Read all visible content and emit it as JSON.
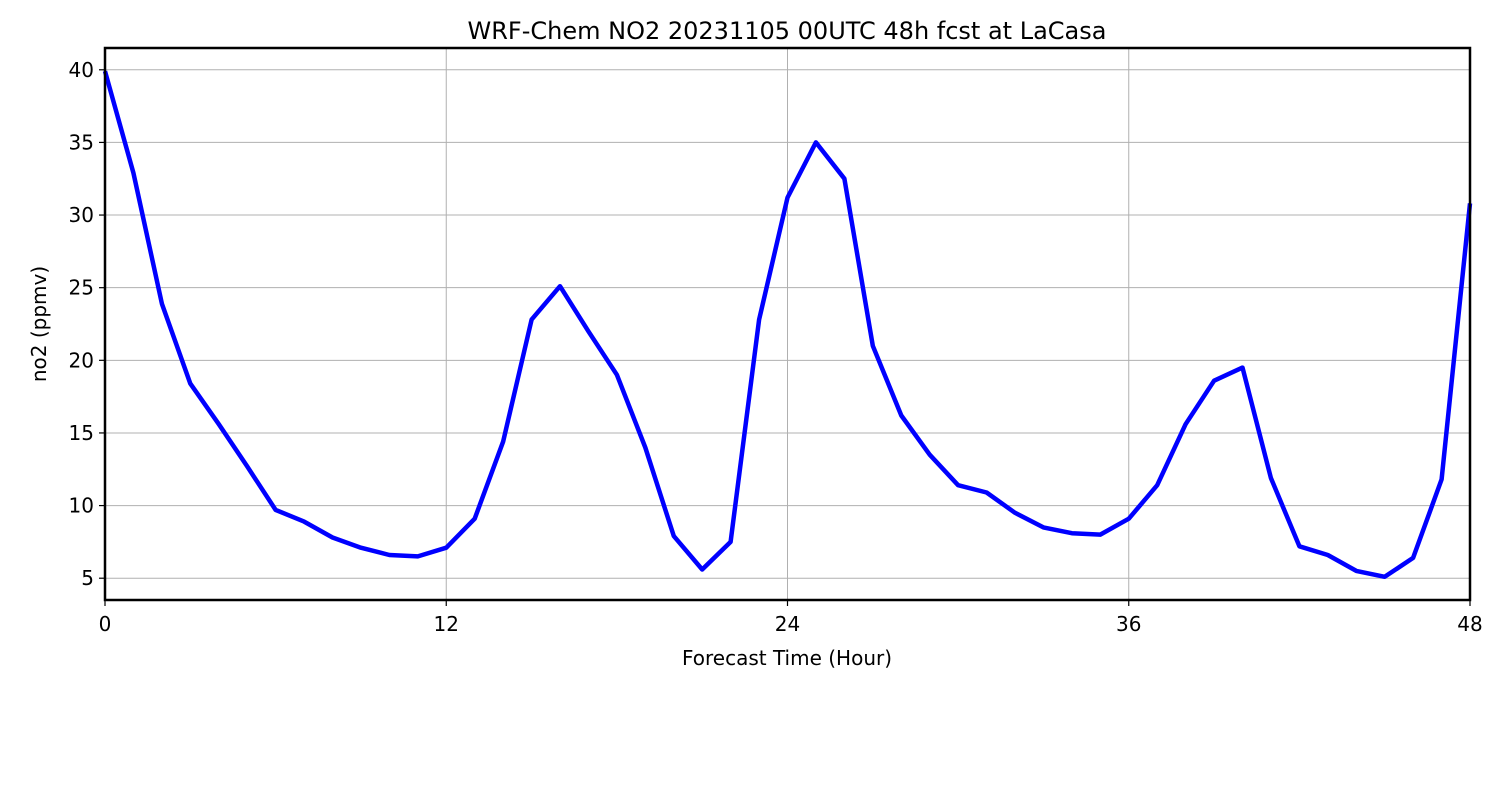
{
  "chart_data": {
    "type": "line",
    "title": "WRF-Chem NO2  20231105 00UTC 48h fcst at LaCasa",
    "xlabel": "Forecast Time (Hour)",
    "ylabel": "no2  (ppmv)",
    "xlim": [
      0,
      48
    ],
    "ylim": [
      3.5,
      41.5
    ],
    "xticks": [
      0,
      12,
      24,
      36,
      48
    ],
    "yticks": [
      5,
      10,
      15,
      20,
      25,
      30,
      35,
      40
    ],
    "grid": true,
    "line_color": "#0000ff",
    "series": [
      {
        "x": [
          0,
          1,
          2,
          3,
          4,
          5,
          6,
          7,
          8,
          9,
          10,
          11,
          12,
          13,
          14,
          15,
          16,
          17,
          18,
          19,
          20,
          21,
          22,
          23,
          24,
          25,
          26,
          27,
          28,
          29,
          30,
          31,
          32,
          33,
          34,
          35,
          36,
          37,
          38,
          39,
          40,
          41,
          42,
          43,
          44,
          45,
          46,
          47,
          48
        ],
        "values": [
          39.9,
          32.9,
          23.9,
          18.4,
          15.6,
          12.7,
          9.7,
          8.9,
          7.8,
          7.1,
          6.6,
          6.5,
          7.1,
          9.1,
          14.4,
          22.8,
          25.1,
          22.0,
          19.0,
          14.0,
          7.9,
          5.6,
          7.5,
          22.8,
          31.2,
          35.0,
          32.5,
          21.0,
          16.2,
          13.5,
          11.4,
          10.9,
          9.5,
          8.5,
          8.1,
          8.0,
          9.1,
          11.4,
          15.6,
          18.6,
          19.5,
          11.9,
          7.2,
          6.6,
          5.5,
          5.1,
          6.4,
          11.8,
          30.8
        ]
      }
    ]
  }
}
